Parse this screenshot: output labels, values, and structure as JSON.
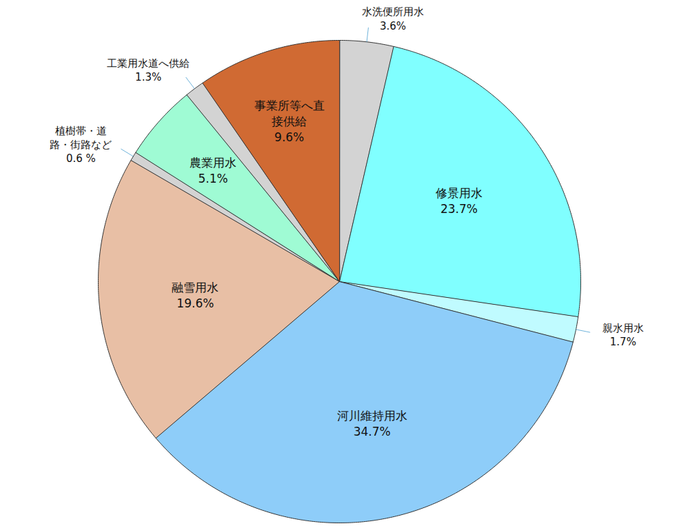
{
  "chart_data": {
    "type": "pie",
    "categories": [
      "水洗便所用水",
      "修景用水",
      "親水用水",
      "河川維持用水",
      "融雪用水",
      "植樹帯・道\n路・街路など",
      "農業用水",
      "工業用水道へ供給",
      "事業所等へ直\n接供給"
    ],
    "values": [
      3.6,
      23.7,
      1.7,
      34.7,
      19.6,
      0.6,
      5.1,
      1.3,
      9.6
    ],
    "value_labels": [
      "3.6%",
      "23.7%",
      "1.7%",
      "34.7%",
      "19.6%",
      "0.6 %",
      "5.1%",
      "1.3%",
      "9.6%"
    ],
    "colors": [
      "#d3d3d3",
      "#80ffff",
      "#c0fbff",
      "#8ecdf9",
      "#e8bfa5",
      "#d3d3d3",
      "#9ffbd4",
      "#d3d3d3",
      "#d06a33"
    ],
    "data_labels": true
  }
}
